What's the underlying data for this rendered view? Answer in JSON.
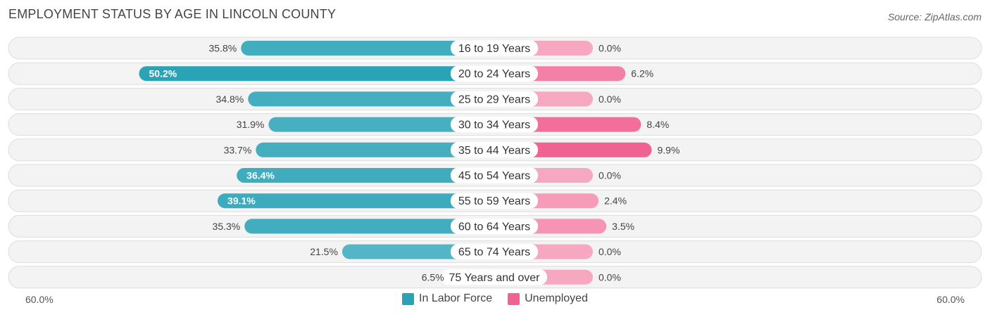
{
  "title": "EMPLOYMENT STATUS BY AGE IN LINCOLN COUNTY",
  "source": "Source: ZipAtlas.com",
  "colors": {
    "labor_force": "#2aa3b6",
    "labor_force_light": "#63bccb",
    "unemployed": "#f06292",
    "unemployed_light": "#f7a8c1",
    "row_bg": "#f3f3f3",
    "row_border": "#dddddd"
  },
  "axis": {
    "left_label": "60.0%",
    "right_label": "60.0%"
  },
  "legend": {
    "labor_force_label": "In Labor Force",
    "unemployed_label": "Unemployed"
  },
  "chart_data": {
    "type": "bar",
    "orientation": "horizontal-diverging",
    "title": "EMPLOYMENT STATUS BY AGE IN LINCOLN COUNTY",
    "xlim": [
      -60,
      60
    ],
    "categories": [
      "16 to 19 Years",
      "20 to 24 Years",
      "25 to 29 Years",
      "30 to 34 Years",
      "35 to 44 Years",
      "45 to 54 Years",
      "55 to 59 Years",
      "60 to 64 Years",
      "65 to 74 Years",
      "75 Years and over"
    ],
    "series": [
      {
        "name": "In Labor Force",
        "values": [
          35.8,
          50.2,
          34.8,
          31.9,
          33.7,
          36.4,
          39.1,
          35.3,
          21.5,
          6.5
        ],
        "labels": [
          "35.8%",
          "50.2%",
          "34.8%",
          "31.9%",
          "33.7%",
          "36.4%",
          "39.1%",
          "35.3%",
          "21.5%",
          "6.5%"
        ]
      },
      {
        "name": "Unemployed",
        "values": [
          0.0,
          6.2,
          0.0,
          8.4,
          9.9,
          0.0,
          2.4,
          3.5,
          0.0,
          0.0
        ],
        "labels": [
          "0.0%",
          "6.2%",
          "0.0%",
          "8.4%",
          "9.9%",
          "0.0%",
          "2.4%",
          "3.5%",
          "0.0%",
          "0.0%"
        ]
      }
    ]
  }
}
